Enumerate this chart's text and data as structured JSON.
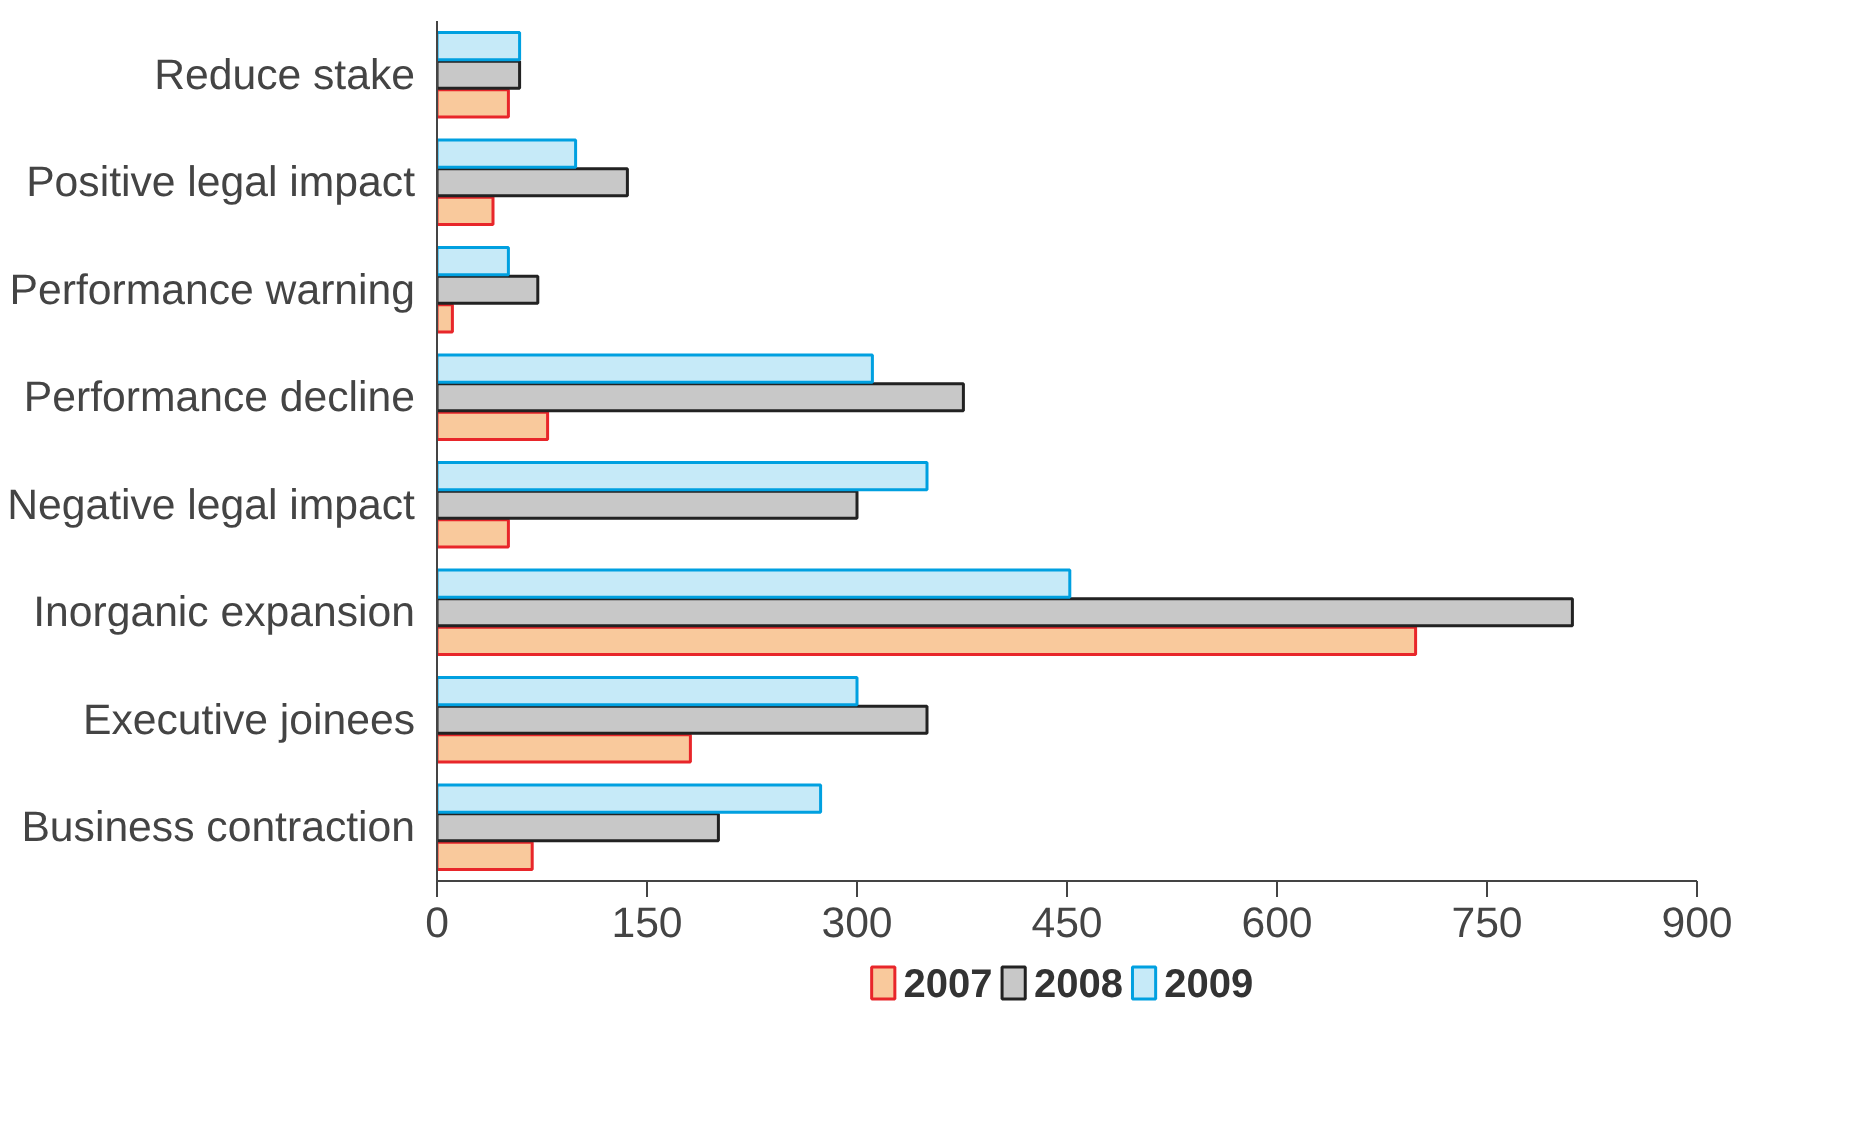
{
  "chart_data": {
    "type": "bar",
    "orientation": "horizontal",
    "categories": [
      "Reduce stake",
      "Positive legal impact",
      "Performance warning",
      "Performance decline",
      "Negative legal impact",
      "Inorganic expansion",
      "Executive joinees",
      "Business contraction"
    ],
    "series": [
      {
        "name": "2007",
        "color": "#f9c99c",
        "values": [
          51,
          40,
          11,
          79,
          51,
          699,
          181,
          68
        ]
      },
      {
        "name": "2008",
        "color": "#c8c8c8",
        "values": [
          59,
          136,
          72,
          376,
          300,
          811,
          350,
          201
        ]
      },
      {
        "name": "2009",
        "color": "#c6eaf8",
        "values": [
          59,
          99,
          51,
          311,
          350,
          452,
          300,
          274
        ]
      }
    ],
    "xlim": [
      0,
      900
    ],
    "xticks": [
      0,
      150,
      300,
      450,
      600,
      750,
      900
    ],
    "grid": false,
    "legend": "bottom"
  }
}
